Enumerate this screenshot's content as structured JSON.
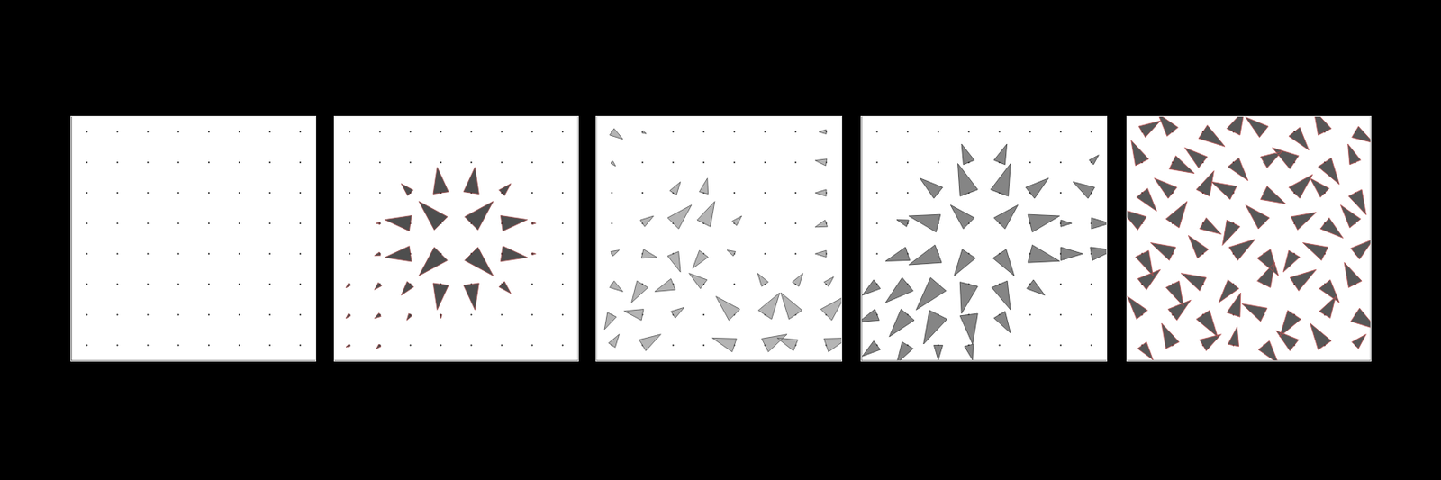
{
  "chart_data": [
    {
      "type": "quiver",
      "color": "#b0b0b0",
      "xlim": [
        -1,
        1
      ],
      "ylim": [
        -1,
        1
      ],
      "tick_labels": false,
      "grid": false,
      "x": [
        -0.875,
        -0.625,
        -0.375,
        -0.125,
        0.125,
        0.375,
        0.625,
        0.875
      ],
      "y": [
        0.875,
        0.625,
        0.375,
        0.125,
        -0.125,
        -0.375,
        -0.625,
        -0.875
      ],
      "u": [
        [
          0,
          0,
          0,
          0,
          0,
          0,
          0,
          0
        ],
        [
          0,
          0,
          0,
          0,
          0,
          0,
          0,
          0
        ],
        [
          0,
          0,
          0,
          0,
          0,
          0,
          0,
          0
        ],
        [
          0,
          0,
          0,
          0,
          0,
          0,
          0,
          0
        ],
        [
          0,
          0,
          0,
          0,
          0,
          0,
          0,
          0
        ],
        [
          0,
          0,
          0,
          0,
          0,
          0,
          0,
          0
        ],
        [
          0,
          0,
          0,
          0,
          0,
          0,
          0,
          0
        ],
        [
          0,
          0,
          0,
          0,
          0,
          0,
          0,
          0
        ]
      ],
      "v": [
        [
          0,
          0,
          0,
          0,
          0,
          0,
          0,
          0
        ],
        [
          0,
          0,
          0,
          0,
          0,
          0,
          0,
          0
        ],
        [
          0,
          0,
          0,
          0,
          0,
          0,
          0,
          0
        ],
        [
          0,
          0,
          0,
          0,
          0,
          0,
          0,
          0
        ],
        [
          0,
          0,
          0,
          0,
          0,
          0,
          0,
          0
        ],
        [
          0,
          0,
          0,
          0,
          0,
          0,
          0,
          0
        ],
        [
          0,
          0,
          0,
          0,
          0,
          0,
          0,
          0
        ],
        [
          0,
          0,
          0,
          0,
          0,
          0,
          0,
          0
        ]
      ]
    },
    {
      "type": "quiver",
      "color": "#303030",
      "xlim": [
        -1,
        1
      ],
      "ylim": [
        -1,
        1
      ],
      "tick_labels": false,
      "grid": false,
      "x": [
        -0.875,
        -0.625,
        -0.375,
        -0.125,
        0.125,
        0.375,
        0.625,
        0.875
      ],
      "y": [
        0.875,
        0.625,
        0.375,
        0.125,
        -0.125,
        -0.375,
        -0.625,
        -0.875
      ],
      "u": [
        [
          0,
          0,
          0,
          0,
          0,
          0,
          0,
          0
        ],
        [
          0,
          0,
          0,
          0,
          0,
          0,
          0,
          0
        ],
        [
          0,
          0,
          -0.25,
          -0.1,
          0.1,
          0.25,
          0,
          0
        ],
        [
          0,
          -0.1,
          -0.7,
          -0.6,
          0.6,
          0.7,
          0.1,
          0
        ],
        [
          0,
          -0.15,
          -0.7,
          -0.6,
          0.6,
          0.7,
          0.1,
          0
        ],
        [
          -0.1,
          -0.15,
          -0.25,
          -0.1,
          0.1,
          0.25,
          0,
          0
        ],
        [
          -0.1,
          -0.15,
          -0.1,
          0,
          0,
          0,
          0,
          0
        ],
        [
          -0.1,
          -0.1,
          0,
          0,
          0,
          0,
          0,
          0
        ]
      ],
      "v": [
        [
          0,
          0,
          0,
          0,
          0,
          0,
          0,
          0
        ],
        [
          0,
          0,
          0,
          0,
          0,
          0,
          0,
          0
        ],
        [
          0,
          0,
          0.25,
          0.7,
          0.7,
          0.25,
          0,
          0
        ],
        [
          0,
          0,
          0.1,
          0.6,
          0.6,
          0.1,
          0,
          0
        ],
        [
          0,
          -0.05,
          -0.1,
          -0.6,
          -0.6,
          -0.1,
          0,
          0
        ],
        [
          -0.1,
          -0.15,
          -0.3,
          -0.7,
          -0.7,
          -0.25,
          0,
          0
        ],
        [
          -0.1,
          -0.1,
          -0.15,
          -0.1,
          0,
          0,
          0,
          0
        ],
        [
          -0.05,
          -0.1,
          0,
          0,
          0,
          0,
          0,
          0
        ]
      ]
    },
    {
      "type": "quiver",
      "color": "#a8a8a8",
      "xlim": [
        -1,
        1
      ],
      "ylim": [
        -1,
        1
      ],
      "tick_labels": false,
      "grid": false,
      "x": [
        -0.875,
        -0.625,
        -0.375,
        -0.125,
        0.125,
        0.375,
        0.625,
        0.875
      ],
      "y": [
        0.875,
        0.625,
        0.375,
        0.125,
        -0.125,
        -0.375,
        -0.625,
        -0.875
      ],
      "u": [
        [
          0.3,
          0.1,
          0,
          0,
          0,
          0,
          0,
          -0.2
        ],
        [
          0.1,
          0,
          0,
          0,
          0,
          0,
          0,
          -0.3
        ],
        [
          0,
          0,
          0.2,
          0.1,
          0,
          0,
          0,
          -0.3
        ],
        [
          0,
          0.3,
          0.5,
          0.3,
          0.2,
          0,
          0,
          -0.3
        ],
        [
          0.2,
          0.4,
          0.2,
          -0.3,
          -0.2,
          0,
          0,
          -0.3
        ],
        [
          0.3,
          -0.3,
          -0.5,
          -0.4,
          0,
          -0.2,
          0.2,
          0.2
        ],
        [
          -0.2,
          -0.5,
          0.3,
          0,
          -0.5,
          0.4,
          -0.4,
          0.5
        ],
        [
          0.2,
          0.5,
          0,
          0,
          -0.6,
          0.6,
          -0.5,
          0.6
        ]
      ],
      "v": [
        [
          -0.2,
          -0.05,
          0,
          0,
          0,
          0,
          0,
          0
        ],
        [
          -0.1,
          0,
          0,
          0,
          0,
          0,
          0,
          0.05
        ],
        [
          0,
          0,
          0.3,
          0.4,
          0,
          0,
          0,
          0
        ],
        [
          0,
          0.2,
          0.5,
          0.6,
          0.2,
          0,
          0,
          -0.1
        ],
        [
          0.1,
          -0.1,
          -0.5,
          -0.4,
          0.1,
          0,
          0,
          0
        ],
        [
          -0.2,
          -0.5,
          -0.2,
          0.3,
          0,
          0.3,
          0.3,
          0.2
        ],
        [
          -0.4,
          0.1,
          0.2,
          0,
          0.5,
          0.6,
          0.6,
          0.5
        ],
        [
          0.3,
          0.3,
          0,
          0,
          0.2,
          0.3,
          0.2,
          0.2
        ]
      ]
    },
    {
      "type": "quiver",
      "color": "#707070",
      "xlim": [
        -1,
        1
      ],
      "ylim": [
        -1,
        1
      ],
      "tick_labels": false,
      "grid": false,
      "x": [
        -0.875,
        -0.625,
        -0.375,
        -0.125,
        0.125,
        0.375,
        0.625,
        0.875
      ],
      "y": [
        0.875,
        0.625,
        0.375,
        0.125,
        -0.125,
        -0.375,
        -0.625,
        -0.875
      ],
      "u": [
        [
          0,
          0,
          0,
          0,
          0,
          0,
          0,
          0
        ],
        [
          0,
          0,
          0,
          -0.2,
          0.2,
          0,
          0,
          0.2
        ],
        [
          0,
          0,
          -0.5,
          -0.3,
          0.3,
          0.5,
          0,
          -0.5
        ],
        [
          0,
          -0.3,
          -0.8,
          -0.5,
          0.5,
          0.8,
          0.3,
          0.5
        ],
        [
          0,
          -0.6,
          -0.8,
          -0.4,
          0.4,
          0.8,
          0.6,
          0.6
        ],
        [
          -0.4,
          -0.6,
          -0.6,
          -0.2,
          0.3,
          0.4,
          0,
          0
        ],
        [
          -0.5,
          -0.5,
          -0.4,
          0.1,
          0.3,
          0,
          0,
          0
        ],
        [
          -0.4,
          -0.3,
          0,
          0.1,
          0,
          0,
          0,
          0
        ]
      ],
      "v": [
        [
          0,
          0,
          0,
          0,
          0,
          0,
          0,
          0
        ],
        [
          0,
          0,
          0,
          0.5,
          0.5,
          0,
          0,
          0.2
        ],
        [
          0,
          0,
          0.4,
          0.8,
          0.8,
          0.4,
          0,
          0.3
        ],
        [
          0,
          0.1,
          0.2,
          0.5,
          0.5,
          0.2,
          0,
          0
        ],
        [
          0,
          -0.2,
          -0.3,
          -0.6,
          -0.6,
          -0.2,
          0,
          0.1
        ],
        [
          -0.3,
          -0.5,
          -0.7,
          -0.8,
          -0.7,
          -0.3,
          0,
          0
        ],
        [
          -0.2,
          -0.6,
          -0.8,
          -0.8,
          -0.5,
          0,
          0,
          0
        ],
        [
          -0.3,
          -0.5,
          -0.4,
          -0.4,
          0,
          0,
          0,
          0
        ]
      ]
    },
    {
      "type": "quiver",
      "color": "#3a3a3a",
      "xlim": [
        -1,
        1
      ],
      "ylim": [
        -1,
        1
      ],
      "tick_labels": false,
      "grid": false,
      "x": [
        -0.875,
        -0.625,
        -0.375,
        -0.125,
        0.125,
        0.375,
        0.625,
        0.875
      ],
      "y": [
        0.875,
        0.625,
        0.375,
        0.125,
        -0.125,
        -0.375,
        -0.625,
        -0.875
      ],
      "u": [
        [
          0.5,
          -0.4,
          0.6,
          0.3,
          -0.5,
          0.4,
          -0.3,
          0.5
        ],
        [
          -0.3,
          0.6,
          -0.5,
          0.4,
          0.5,
          -0.6,
          0.4,
          -0.2
        ],
        [
          0.4,
          -0.5,
          0.3,
          -0.6,
          0.6,
          0.5,
          -0.4,
          0.3
        ],
        [
          -0.6,
          0.4,
          0.5,
          -0.3,
          -0.5,
          0.6,
          0.5,
          -0.4
        ],
        [
          0.3,
          -0.6,
          -0.4,
          0.6,
          0.4,
          -0.3,
          -0.6,
          0.5
        ],
        [
          0.5,
          0.3,
          -0.6,
          -0.4,
          0.3,
          0.6,
          0.4,
          -0.3
        ],
        [
          -0.4,
          0.5,
          0.4,
          0.2,
          -0.6,
          -0.4,
          0.3,
          0.6
        ],
        [
          0.3,
          -0.3,
          0.5,
          0.1,
          0.4,
          -0.5,
          -0.4,
          0.3
        ]
      ],
      "v": [
        [
          0.3,
          0.5,
          -0.4,
          0.6,
          0.4,
          -0.5,
          0.6,
          -0.3
        ],
        [
          0.6,
          -0.3,
          0.4,
          -0.5,
          0.3,
          0.4,
          -0.6,
          0.5
        ],
        [
          -0.5,
          0.4,
          0.6,
          0.3,
          -0.3,
          0.5,
          0.4,
          -0.6
        ],
        [
          0.4,
          0.6,
          -0.3,
          -0.6,
          0.5,
          0.3,
          -0.4,
          0.5
        ],
        [
          -0.6,
          0.3,
          0.5,
          0.4,
          -0.6,
          -0.5,
          0.3,
          0.4
        ],
        [
          0.4,
          -0.6,
          0.3,
          -0.5,
          0.6,
          0.4,
          -0.5,
          0.6
        ],
        [
          0.5,
          0.4,
          -0.6,
          0.6,
          0.3,
          -0.6,
          0.5,
          -0.4
        ],
        [
          -0.4,
          0.6,
          0.3,
          0.5,
          -0.5,
          0.4,
          0.6,
          0.3
        ]
      ]
    }
  ]
}
